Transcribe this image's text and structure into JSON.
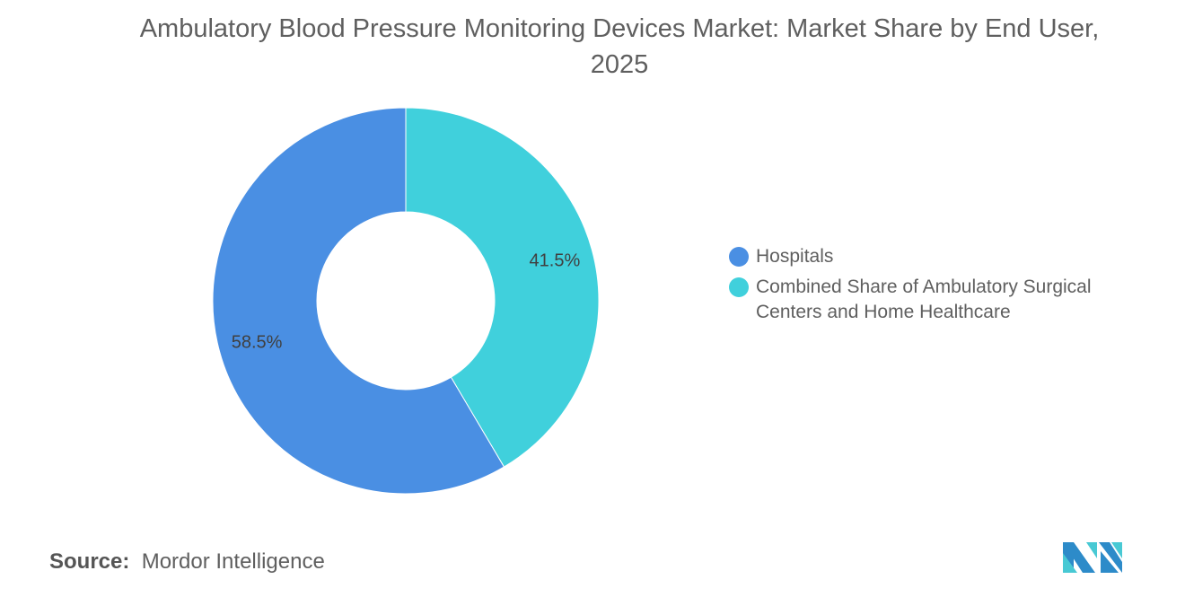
{
  "chart_data": {
    "type": "pie",
    "variant": "donut",
    "title": "Ambulatory Blood Pressure Monitoring Devices Market: Market Share by End User, 2025",
    "categories": [
      "Combined Share of Ambulatory Surgical Centers and Home Healthcare",
      "Hospitals"
    ],
    "values": [
      41.5,
      58.5
    ],
    "labels": [
      "41.5%",
      "58.5%"
    ],
    "colors": [
      "#40D0DC",
      "#4A8FE3"
    ],
    "legend_position": "right",
    "legend": [
      {
        "label": "Hospitals",
        "color": "#4A8FE3"
      },
      {
        "label": "Combined Share of Ambulatory Surgical Centers and Home Healthcare",
        "color": "#40D0DC"
      }
    ]
  },
  "source": {
    "label": "Source:",
    "value": "Mordor Intelligence"
  },
  "logo": {
    "icon": "mordor-intelligence-logo"
  }
}
